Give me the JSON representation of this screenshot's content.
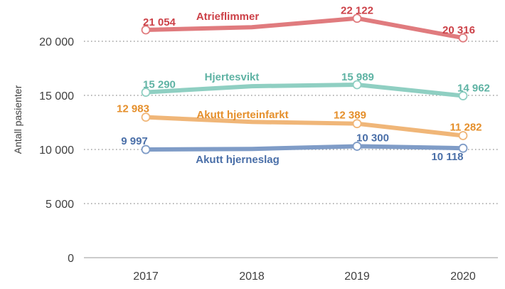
{
  "chart_data": {
    "type": "line",
    "ylabel": "Antall pasienter",
    "xlabel": "",
    "x": [
      "2017",
      "2018",
      "2019",
      "2020"
    ],
    "ylim": [
      0,
      22500
    ],
    "yticks": [
      0,
      5000,
      10000,
      15000,
      20000
    ],
    "ytick_labels": [
      "0",
      "5 000",
      "10 000",
      "15 000",
      "20 000"
    ],
    "grid": "horizontal dotted",
    "series": [
      {
        "name": "Atrieflimmer",
        "color": "#e07b7e",
        "label_color": "#cc4148",
        "values": [
          21054,
          21300,
          22122,
          20316
        ],
        "labels": [
          "21 054",
          "",
          "22 122",
          "20 316"
        ]
      },
      {
        "name": "Hjertesvikt",
        "color": "#8fcfc2",
        "label_color": "#5fb3a4",
        "values": [
          15290,
          15850,
          15989,
          14962
        ],
        "labels": [
          "15 290",
          "",
          "15 989",
          "14 962"
        ]
      },
      {
        "name": "Akutt hjerteinfarkt",
        "color": "#f0b678",
        "label_color": "#e58f2b",
        "values": [
          12983,
          12550,
          12389,
          11282
        ],
        "labels": [
          "12 983",
          "",
          "12 389",
          "11 282"
        ]
      },
      {
        "name": "Akutt hjerneslag",
        "color": "#7f9cc7",
        "label_color": "#4a6fa8",
        "values": [
          9997,
          10050,
          10300,
          10118
        ],
        "labels": [
          "9 997",
          "",
          "10 300",
          "10 118"
        ]
      }
    ]
  }
}
